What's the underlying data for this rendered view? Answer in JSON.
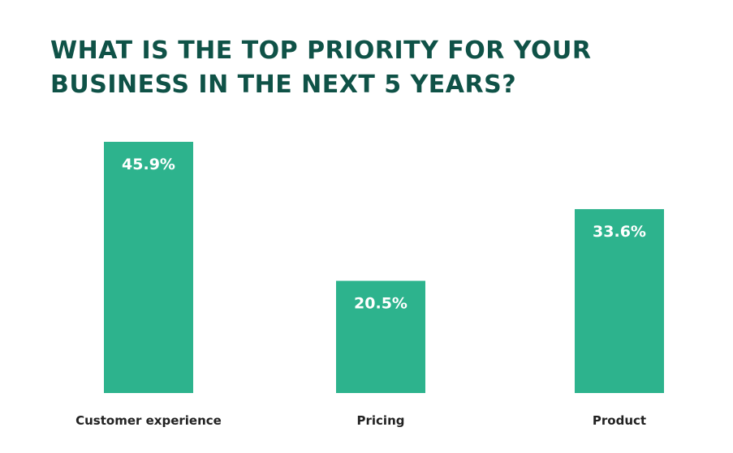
{
  "chart_data": {
    "type": "bar",
    "title": "WHAT IS THE TOP PRIORITY FOR YOUR BUSINESS IN THE NEXT 5 YEARS?",
    "categories": [
      "Customer experience",
      "Pricing",
      "Product"
    ],
    "values": [
      45.9,
      20.5,
      33.6
    ],
    "value_labels": [
      "45.9%",
      "20.5%",
      "33.6%"
    ],
    "ylim": [
      0,
      45.9
    ],
    "grid": false,
    "legend": "none"
  },
  "colors": {
    "title": "#0f5247",
    "bar": "#2db38d",
    "value_text": "#ffffff",
    "category_text": "#222222"
  }
}
